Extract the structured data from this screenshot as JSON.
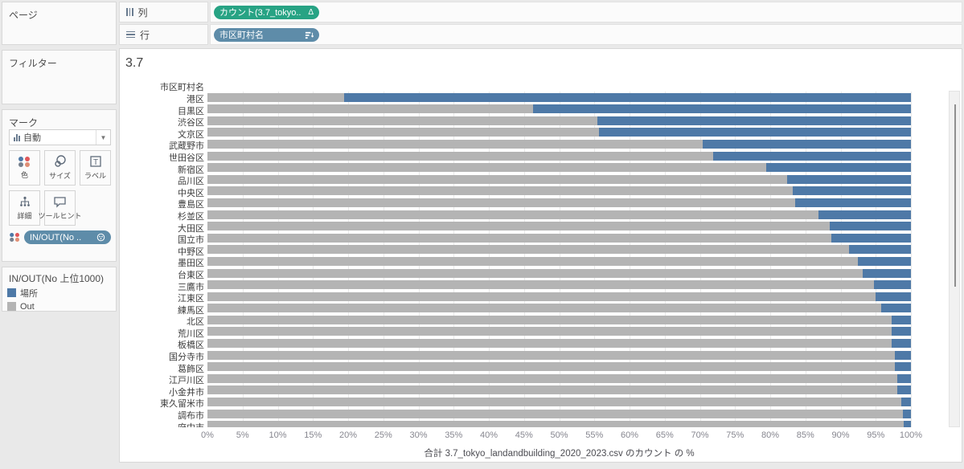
{
  "sidebar": {
    "pages_label": "ページ",
    "filters_label": "フィルター",
    "marks_label": "マーク",
    "marks_type": "自動",
    "marks_buttons": {
      "color": "色",
      "size": "サイズ",
      "label": "ラベル",
      "detail": "詳細",
      "tooltip": "ツールヒント"
    },
    "marks_color_pill": "IN/OUT(No .."
  },
  "legend": {
    "title": "IN/OUT(No 上位1000)",
    "items": [
      {
        "label": "場所",
        "color": "#4e79a7"
      },
      {
        "label": "Out",
        "color": "#b4b4b4"
      }
    ]
  },
  "shelves": {
    "columns_label": "列",
    "rows_label": "行",
    "columns_pill": "カウント(3.7_tokyo..",
    "columns_pill_glyph": "Δ",
    "rows_pill": "市区町村名"
  },
  "colors": {
    "bar_blue": "#4e79a7",
    "bar_gray": "#b4b4b4",
    "pill_green": "#27a384",
    "pill_blue": "#5e8ca9"
  },
  "chart_data": {
    "type": "bar",
    "orientation": "horizontal",
    "stacked": true,
    "normalized": "percent",
    "title": "3.7",
    "row_header": "市区町村名",
    "xlabel": "合計 3.7_tokyo_landandbuilding_2020_2023.csv のカウント の %",
    "xlim": [
      0,
      100
    ],
    "x_ticks": [
      "0%",
      "5%",
      "10%",
      "15%",
      "20%",
      "25%",
      "30%",
      "35%",
      "40%",
      "45%",
      "50%",
      "55%",
      "60%",
      "65%",
      "70%",
      "75%",
      "80%",
      "85%",
      "90%",
      "95%",
      "100%"
    ],
    "grid": true,
    "legend_position": "left",
    "categories": [
      "港区",
      "目黒区",
      "渋谷区",
      "文京区",
      "武蔵野市",
      "世田谷区",
      "新宿区",
      "品川区",
      "中央区",
      "豊島区",
      "杉並区",
      "大田区",
      "国立市",
      "中野区",
      "墨田区",
      "台東区",
      "三鷹市",
      "江東区",
      "練馬区",
      "北区",
      "荒川区",
      "板橋区",
      "国分寺市",
      "葛飾区",
      "江戸川区",
      "小金井市",
      "東久留米市",
      "調布市",
      "府中市"
    ],
    "series": [
      {
        "name": "Out",
        "color": "#b4b4b4",
        "values": [
          19.4,
          46.3,
          55.4,
          55.7,
          70.4,
          71.9,
          79.4,
          82.4,
          83.2,
          83.5,
          86.9,
          88.5,
          88.7,
          91.2,
          92.5,
          93.1,
          94.7,
          95.0,
          95.8,
          97.3,
          97.3,
          97.3,
          97.7,
          97.7,
          98.0,
          98.0,
          98.6,
          98.9,
          99.0
        ]
      },
      {
        "name": "場所",
        "color": "#4e79a7",
        "values": [
          80.6,
          53.7,
          44.6,
          44.3,
          29.6,
          28.1,
          20.6,
          17.6,
          16.8,
          16.5,
          13.1,
          11.5,
          11.3,
          8.8,
          7.5,
          6.9,
          5.3,
          5.0,
          4.2,
          2.7,
          2.7,
          2.7,
          2.3,
          2.3,
          2.0,
          2.0,
          1.4,
          1.1,
          1.0
        ]
      }
    ]
  }
}
